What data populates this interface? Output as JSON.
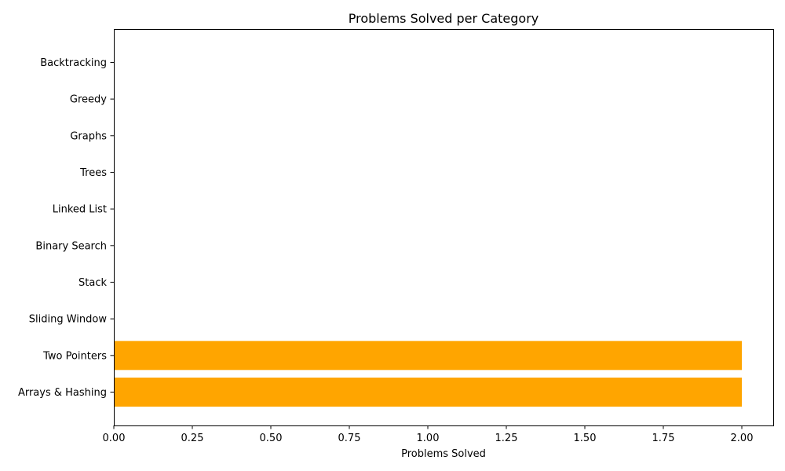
{
  "chart_data": {
    "type": "bar",
    "orientation": "horizontal",
    "title": "Problems Solved per Category",
    "xlabel": "Problems Solved",
    "ylabel": "",
    "categories": [
      "Arrays & Hashing",
      "Two Pointers",
      "Sliding Window",
      "Stack",
      "Binary Search",
      "Linked List",
      "Trees",
      "Graphs",
      "Greedy",
      "Backtracking"
    ],
    "values": [
      2,
      2,
      0,
      0,
      0,
      0,
      0,
      0,
      0,
      0
    ],
    "xlim": [
      0,
      2.1
    ],
    "xticks": [
      "0.00",
      "0.25",
      "0.50",
      "0.75",
      "1.00",
      "1.25",
      "1.50",
      "1.75",
      "2.00"
    ],
    "bar_color": "#FFA500",
    "grid": false,
    "legend": false
  }
}
